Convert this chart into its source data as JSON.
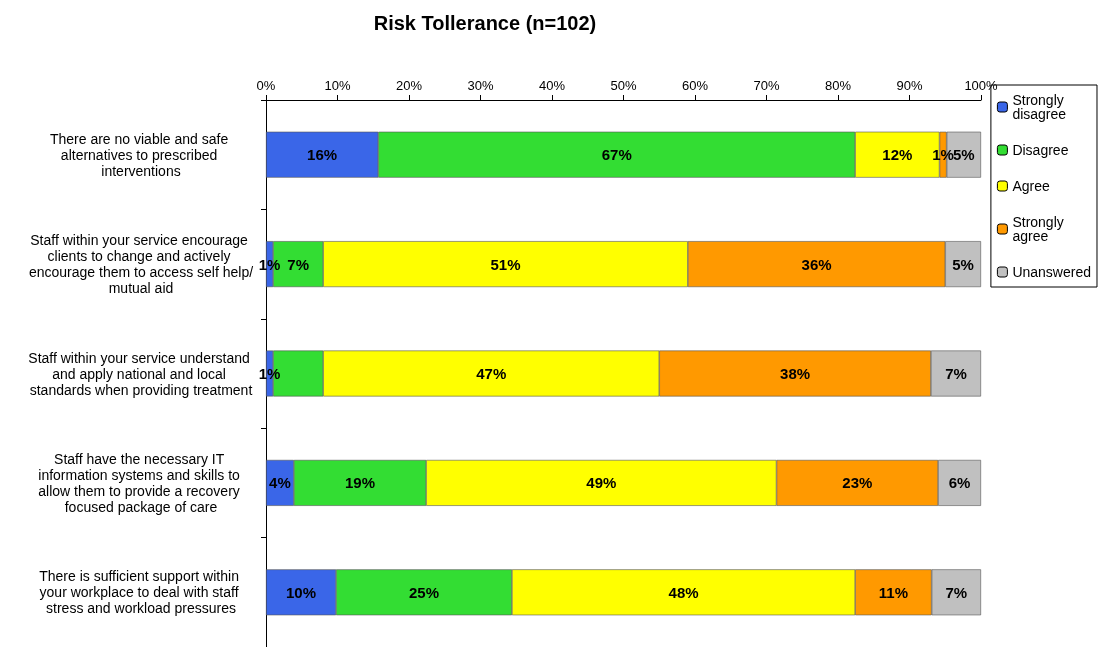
{
  "chart_data": {
    "type": "bar",
    "orientation": "horizontal",
    "stacked": true,
    "title": "Risk Tollerance (n=102)",
    "categories": [
      "There are no viable and safe alternatives to prescribed interventions",
      "Staff within your service encourage clients to change and actively encourage them to access self help/mutual aid",
      "Staff within your service understand and apply national and local standards when providing treatment",
      "Staff have the necessary IT information systems and skills to allow them to provide a recovery focused package of care",
      "There is sufficient support within your workplace to deal with staff stress and workload pressures"
    ],
    "series": [
      {
        "name": "Strongly disagree",
        "color": "#3a66e8",
        "values": [
          15.7,
          1,
          1,
          3.9,
          9.8
        ],
        "value_labels": [
          "16%",
          "1%",
          "1%",
          "4%",
          "10%"
        ]
      },
      {
        "name": "Disagree",
        "color": "#33dd33",
        "values": [
          66.7,
          7,
          7,
          18.5,
          24.6
        ],
        "value_labels": [
          "67%",
          "7%",
          null,
          "19%",
          "25%"
        ]
      },
      {
        "name": "Agree",
        "color": "#ffff00",
        "values": [
          11.8,
          51,
          47,
          49,
          48
        ],
        "value_labels": [
          "12%",
          "51%",
          "47%",
          "49%",
          "48%"
        ]
      },
      {
        "name": "Strongly agree",
        "color": "#ff9900",
        "values": [
          1,
          36,
          38,
          22.6,
          10.7
        ],
        "value_labels": [
          "1%",
          "36%",
          "38%",
          "23%",
          "11%"
        ]
      },
      {
        "name": "Unanswered",
        "color": "#c0c0c0",
        "values": [
          4.8,
          5,
          7,
          6,
          6.9
        ],
        "value_labels": [
          "5%",
          "5%",
          "7%",
          "6%",
          "7%"
        ]
      }
    ],
    "xlim": [
      0,
      100
    ],
    "xticks": [
      {
        "value": 0,
        "label": "0%"
      },
      {
        "value": 10,
        "label": "10%"
      },
      {
        "value": 20,
        "label": "20%"
      },
      {
        "value": 30,
        "label": "30%"
      },
      {
        "value": 40,
        "label": "40%"
      },
      {
        "value": 50,
        "label": "50%"
      },
      {
        "value": 60,
        "label": "60%"
      },
      {
        "value": 70,
        "label": "70%"
      },
      {
        "value": 80,
        "label": "80%"
      },
      {
        "value": 90,
        "label": "90%"
      },
      {
        "value": 100,
        "label": "100%"
      }
    ],
    "grid": false,
    "legend": "right"
  }
}
